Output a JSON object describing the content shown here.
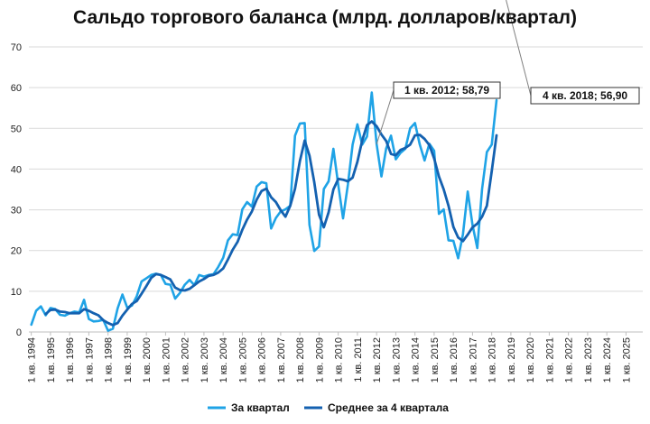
{
  "chart_data": {
    "type": "line",
    "title": "Сальдо торгового баланса (млрд. долларов/квартал)",
    "xlabel": "",
    "ylabel": "",
    "ylim": [
      0,
      70
    ],
    "yticks": [
      0,
      10,
      20,
      30,
      40,
      50,
      60,
      70
    ],
    "xticks": [
      "1 кв. 1994",
      "1 кв. 1995",
      "1 кв. 1996",
      "1 кв. 1997",
      "1 кв. 1998",
      "1 кв. 1999",
      "1 кв. 2000",
      "1 кв. 2001",
      "1 кв. 2002",
      "1 кв. 2003",
      "1 кв. 2004",
      "1 кв. 2005",
      "1 кв. 2006",
      "1 кв. 2007",
      "1 кв. 2008",
      "1 кв. 2009",
      "1 кв. 2010",
      "1 кв. 2011",
      "1 кв. 2012",
      "1 кв. 2013",
      "1 кв. 2014",
      "1 кв. 2015",
      "1 кв. 2016",
      "1 кв. 2017",
      "1 кв. 2018",
      "1 кв. 2019",
      "1 кв. 2020",
      "1 кв. 2021",
      "1 кв. 2022",
      "1 кв. 2023",
      "1 кв. 2024",
      "1 кв. 2025"
    ],
    "grid": "horizontal",
    "legend": "bottom",
    "colors": {
      "quarter": "#1fa3e6",
      "avg4": "#1461b0",
      "grid": "#d9d9d9"
    },
    "series": [
      {
        "name": "За квартал",
        "values": [
          1.8,
          5.2,
          6.3,
          4.1,
          5.9,
          5.6,
          4.2,
          4.0,
          4.6,
          5.0,
          4.8,
          7.9,
          3.2,
          2.6,
          2.7,
          3.0,
          0.3,
          0.8,
          5.8,
          9.2,
          6.0,
          6.5,
          8.8,
          12.4,
          13.2,
          14.0,
          14.3,
          14.0,
          11.8,
          11.6,
          8.2,
          9.6,
          11.6,
          12.8,
          11.5,
          14.0,
          13.6,
          14.0,
          14.2,
          16.0,
          18.2,
          22.5,
          24.0,
          23.8,
          30.1,
          31.9,
          30.8,
          35.7,
          36.8,
          36.5,
          25.4,
          28.0,
          29.6,
          30.1,
          31.0,
          48.2,
          51.2,
          51.3,
          26.3,
          19.9,
          21.0,
          35.1,
          37.0,
          45.0,
          36.1,
          27.9,
          36.1,
          46.0,
          51.0,
          46.0,
          48.0,
          58.79,
          46.1,
          38.2,
          45.1,
          48.2,
          42.4,
          44.0,
          45.0,
          50.0,
          51.3,
          46.0,
          42.1,
          46.2,
          44.5,
          29.0,
          30.1,
          22.5,
          22.4,
          18.1,
          24.0,
          34.5,
          26.3,
          20.6,
          35.1,
          44.2,
          46.0,
          56.9
        ],
        "callout": "1 кв. 2012; 58,79"
      },
      {
        "name": "Среднее за 4 квартала",
        "values": [
          null,
          null,
          null,
          4.4,
          5.4,
          5.5,
          5.0,
          4.9,
          4.6,
          4.6,
          4.6,
          5.6,
          5.2,
          4.6,
          4.1,
          2.9,
          2.2,
          1.7,
          2.2,
          4.0,
          5.5,
          6.9,
          7.6,
          9.4,
          11.3,
          13.3,
          14.2,
          14.0,
          13.5,
          12.9,
          10.9,
          10.3,
          10.2,
          10.6,
          11.5,
          12.4,
          13.0,
          13.8,
          14.0,
          14.6,
          15.6,
          17.8,
          20.2,
          22.1,
          25.1,
          27.6,
          29.6,
          32.5,
          34.6,
          35.2,
          33.1,
          31.9,
          29.9,
          28.3,
          31.0,
          35.2,
          42.0,
          47.0,
          43.3,
          36.8,
          28.8,
          25.7,
          29.4,
          35.0,
          37.6,
          37.4,
          37.0,
          37.9,
          41.8,
          47.0,
          50.8,
          51.7,
          50.5,
          48.5,
          46.9,
          43.7,
          43.4,
          44.7,
          45.2,
          46.0,
          48.3,
          48.4,
          47.4,
          45.9,
          42.6,
          38.2,
          35.0,
          31.0,
          25.8,
          23.2,
          22.3,
          23.9,
          25.7,
          26.6,
          28.3,
          31.0,
          39.5,
          48.3
        ],
        "callout": "4 кв. 2018; 56,90"
      }
    ]
  }
}
